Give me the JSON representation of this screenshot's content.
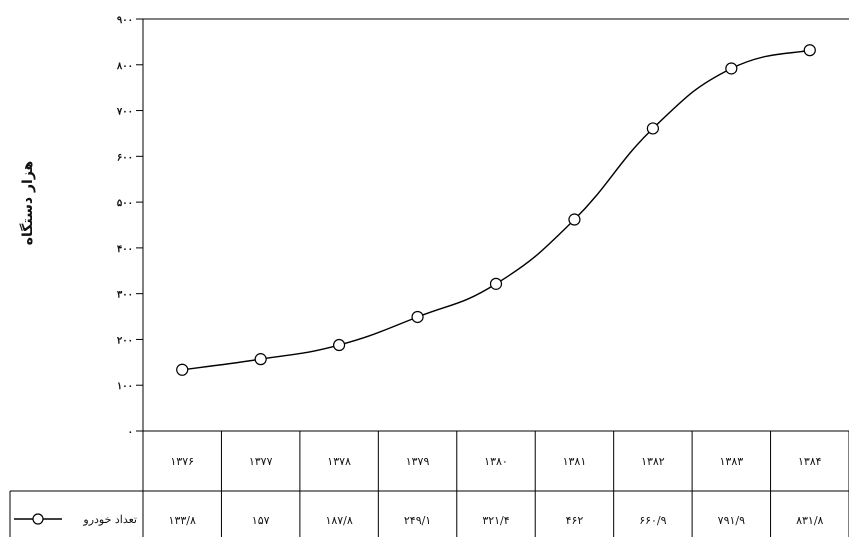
{
  "chart_data": {
    "type": "line",
    "title": "",
    "xlabel": "",
    "ylabel": "هزار دستگاه",
    "ylim": [
      0,
      900
    ],
    "yticks": [
      0,
      100,
      200,
      300,
      400,
      500,
      600,
      700,
      800,
      900
    ],
    "ytick_labels": [
      "۰",
      "۱۰۰",
      "۲۰۰",
      "۳۰۰",
      "۴۰۰",
      "۵۰۰",
      "۶۰۰",
      "۷۰۰",
      "۸۰۰",
      "۹۰۰"
    ],
    "grid": false,
    "categories": [
      "۱۳۷۶",
      "۱۳۷۷",
      "۱۳۷۸",
      "۱۳۷۹",
      "۱۳۸۰",
      "۱۳۸۱",
      "۱۳۸۲",
      "۱۳۸۳",
      "۱۳۸۴"
    ],
    "series": [
      {
        "name": "تعداد خودرو",
        "values": [
          133.8,
          157,
          187.8,
          249.1,
          321.4,
          462,
          660.9,
          791.9,
          831.8
        ],
        "value_labels": [
          "۱۳۳/۸",
          "۱۵۷",
          "۱۸۷/۸",
          "۲۴۹/۱",
          "۳۲۱/۴",
          "۴۶۲",
          "۶۶۰/۹",
          "۷۹۱/۹",
          "۸۳۱/۸"
        ],
        "color": "#000000",
        "marker": "open-circle",
        "smooth": true
      }
    ],
    "legend": "bottom-left, inside data table"
  }
}
